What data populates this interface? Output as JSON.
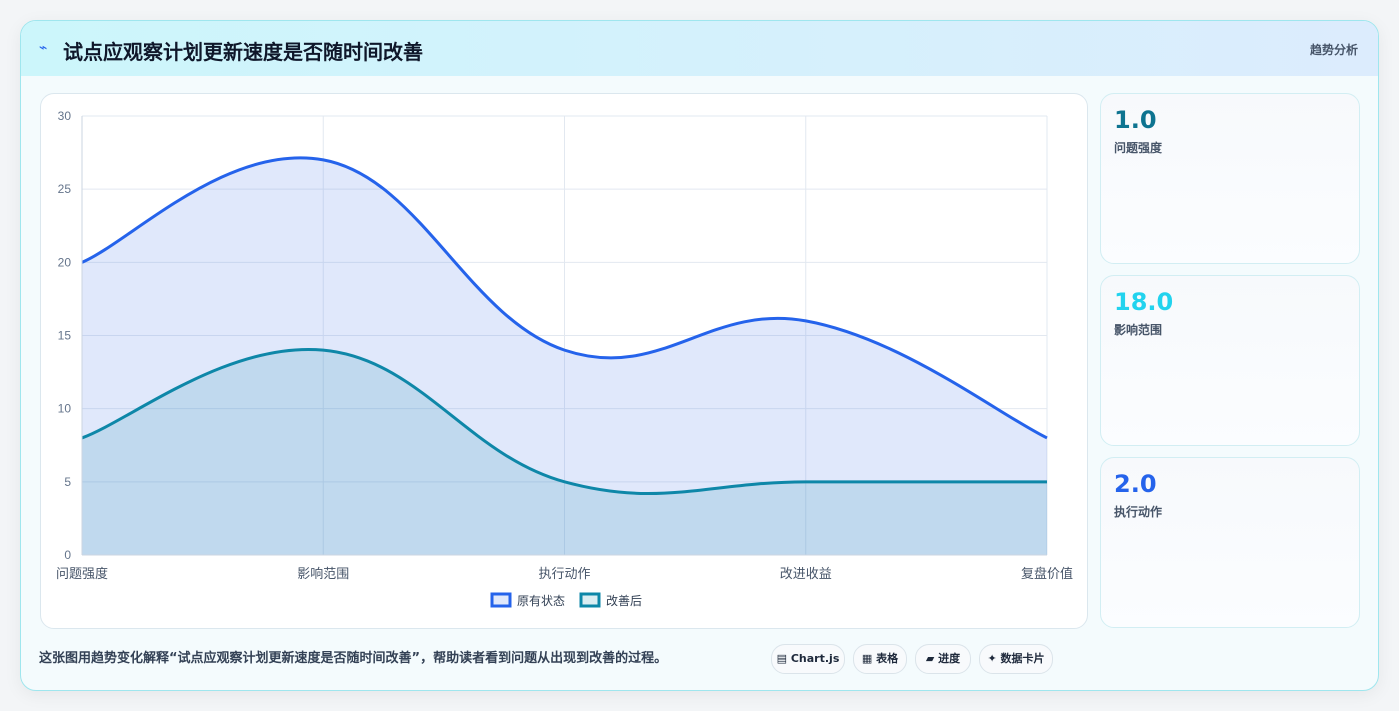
{
  "header": {
    "title": "试点应观察计划更新速度是否随时间改善",
    "tag": "趋势分析"
  },
  "stats": [
    {
      "value": "1.0",
      "label": "问题强度",
      "color": "#0e7490"
    },
    {
      "value": "18.0",
      "label": "影响范围",
      "color": "#22d3ee"
    },
    {
      "value": "2.0",
      "label": "执行动作",
      "color": "#2563eb"
    }
  ],
  "caption": "这张图用趋势变化解释“试点应观察计划更新速度是否随时间改善”，帮助读者看到问题从出现到改善的过程。",
  "chips": [
    {
      "icon": "▤",
      "label": "Chart.js"
    },
    {
      "icon": "▦",
      "label": "表格"
    },
    {
      "icon": "▰",
      "label": "进度"
    },
    {
      "icon": "✦",
      "label": "数据卡片"
    }
  ],
  "chart_data": {
    "type": "area",
    "categories": [
      "问题强度",
      "影响范围",
      "执行动作",
      "改进收益",
      "复盘价值"
    ],
    "series": [
      {
        "name": "原有状态",
        "values": [
          20,
          27,
          14,
          16,
          8
        ],
        "color": "#2563eb",
        "fill": "rgba(99,140,235,0.20)"
      },
      {
        "name": "改善后",
        "values": [
          8,
          14,
          5,
          5,
          5
        ],
        "color": "#0e87a8",
        "fill": "rgba(14,135,168,0.15)"
      }
    ],
    "ylim": [
      0,
      30
    ],
    "yticks": [
      0,
      5,
      10,
      15,
      20,
      25,
      30
    ],
    "grid": true,
    "legend": "bottom"
  }
}
